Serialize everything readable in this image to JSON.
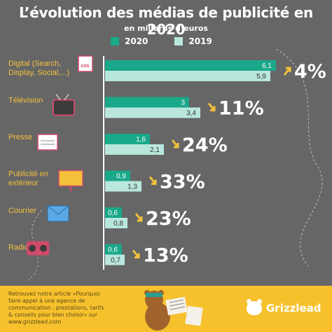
{
  "title": "L’évolution des médias de publicité en 2020",
  "subtitle": "en millards d’euros",
  "colors": {
    "background": "#666666",
    "series_2020": "#1aa88a",
    "series_2019": "#b9e7dd",
    "label_text": "#f3c13a",
    "arrow": "#f3c13a"
  },
  "chart_data": {
    "type": "bar",
    "orientation": "horizontal",
    "categories": [
      "Digital (Search, Display, Social,...)",
      "Télévision",
      "Presse",
      "Publicité en extérieur",
      "Courrier",
      "Radio"
    ],
    "series": [
      {
        "name": "2020",
        "values": [
          6.1,
          3,
          1.6,
          0.9,
          0.6,
          0.6
        ],
        "labels": [
          "6,1",
          "3",
          "1,6",
          "0,9",
          "0,6",
          "0,6"
        ]
      },
      {
        "name": "2019",
        "values": [
          5.9,
          3.4,
          2.1,
          1.3,
          0.8,
          0.7
        ],
        "labels": [
          "5,9",
          "3,4",
          "2,1",
          "1,3",
          "0,8",
          "0,7"
        ]
      }
    ],
    "changes": [
      {
        "direction": "up",
        "label": "4%"
      },
      {
        "direction": "down",
        "label": "11%"
      },
      {
        "direction": "down",
        "label": "24%"
      },
      {
        "direction": "down",
        "label": "33%"
      },
      {
        "direction": "down",
        "label": "23%"
      },
      {
        "direction": "down",
        "label": "13%"
      }
    ],
    "icons": [
      "ads-web-icon",
      "television-icon",
      "newspaper-icon",
      "billboard-icon",
      "envelope-icon",
      "radio-icon"
    ],
    "xlim": [
      0,
      6.1
    ],
    "grid": false,
    "legend_position": "top"
  },
  "footer": {
    "text": "Retrouvez notre article «Pourquoi faire appel à une agence de communication : prestations, tarifs & conseils pour bien choisir» sur www.grizzlead.com",
    "brand": "Grizzlead"
  }
}
